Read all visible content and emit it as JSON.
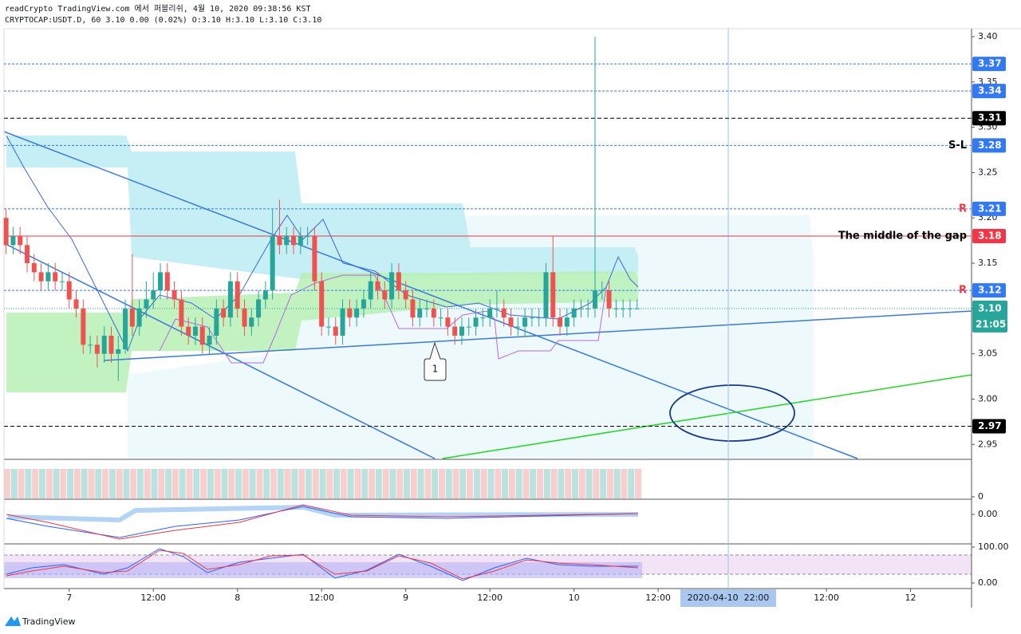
{
  "header": {
    "line1": "readCrypto TradingView.com 에서 퍼블리쉬, 4월 10, 2020 09:38:56 KST",
    "line2": "CRYPTOCAP:USDT.D, 60 3.10 0.00 (0.02%) O:3.10 H:3.10 L:3.10 C:3.10"
  },
  "chart_data": {
    "type": "candlestick",
    "x": [
      -9,
      -8,
      -7,
      -6,
      -5,
      -4,
      -3,
      -2,
      -1,
      0,
      1,
      2,
      3,
      4,
      5,
      6,
      7,
      8,
      9,
      10,
      11,
      12,
      13,
      14,
      15,
      16,
      17,
      18,
      19,
      20,
      21,
      22,
      23,
      24,
      25,
      26,
      27,
      28,
      29,
      30,
      31,
      32,
      33,
      34,
      35,
      36,
      37,
      38,
      39,
      40,
      41,
      42,
      43,
      44,
      45,
      46,
      47,
      48,
      49,
      50,
      51,
      52,
      53,
      54,
      55,
      56,
      57,
      58,
      59,
      60,
      61,
      62,
      63,
      64,
      65,
      66,
      67,
      68,
      69,
      70,
      71,
      72,
      73,
      74,
      75,
      76,
      77,
      78,
      79,
      80,
      81
    ],
    "open": [
      3.2,
      3.17,
      3.18,
      3.17,
      3.15,
      3.14,
      3.13,
      3.14,
      3.13,
      3.13,
      3.11,
      3.1,
      3.06,
      3.06,
      3.05,
      3.07,
      3.05,
      3.055,
      3.1,
      3.08,
      3.1,
      3.11,
      3.12,
      3.14,
      3.12,
      3.11,
      3.08,
      3.07,
      3.08,
      3.06,
      3.07,
      3.1,
      3.09,
      3.13,
      3.1,
      3.08,
      3.09,
      3.11,
      3.12,
      3.18,
      3.17,
      3.18,
      3.17,
      3.18,
      3.18,
      3.13,
      3.08,
      3.08,
      3.07,
      3.1,
      3.09,
      3.1,
      3.11,
      3.13,
      3.12,
      3.11,
      3.14,
      3.12,
      3.11,
      3.09,
      3.1,
      3.1,
      3.09,
      3.09,
      3.08,
      3.07,
      3.08,
      3.08,
      3.09,
      3.09,
      3.1,
      3.1,
      3.09,
      3.08,
      3.08,
      3.09,
      3.09,
      3.09,
      3.14,
      3.09,
      3.08,
      3.09,
      3.1,
      3.1,
      3.1,
      3.12,
      3.12,
      3.1,
      3.1,
      3.1,
      3.1
    ],
    "high": [
      3.21,
      3.19,
      3.19,
      3.18,
      3.16,
      3.15,
      3.15,
      3.15,
      3.14,
      3.14,
      3.12,
      3.11,
      3.07,
      3.07,
      3.08,
      3.08,
      3.07,
      3.11,
      3.16,
      3.11,
      3.13,
      3.14,
      3.15,
      3.15,
      3.13,
      3.12,
      3.09,
      3.09,
      3.09,
      3.08,
      3.11,
      3.11,
      3.14,
      3.14,
      3.11,
      3.1,
      3.12,
      3.13,
      3.21,
      3.22,
      3.19,
      3.19,
      3.19,
      3.19,
      3.19,
      3.14,
      3.09,
      3.09,
      3.11,
      3.11,
      3.11,
      3.12,
      3.14,
      3.14,
      3.13,
      3.15,
      3.15,
      3.13,
      3.12,
      3.11,
      3.11,
      3.11,
      3.1,
      3.1,
      3.09,
      3.09,
      3.09,
      3.1,
      3.1,
      3.11,
      3.12,
      3.11,
      3.1,
      3.09,
      3.1,
      3.1,
      3.1,
      3.15,
      3.18,
      3.1,
      3.1,
      3.11,
      3.11,
      3.11,
      3.4,
      3.13,
      3.13,
      3.11,
      3.11,
      3.11,
      3.11
    ],
    "low": [
      3.16,
      3.16,
      3.16,
      3.14,
      3.13,
      3.12,
      3.12,
      3.12,
      3.12,
      3.1,
      3.09,
      3.05,
      3.05,
      3.035,
      3.04,
      3.04,
      3.02,
      3.05,
      3.07,
      3.07,
      3.09,
      3.1,
      3.11,
      3.11,
      3.1,
      3.07,
      3.06,
      3.06,
      3.05,
      3.05,
      3.06,
      3.08,
      3.08,
      3.09,
      3.07,
      3.07,
      3.08,
      3.1,
      3.11,
      3.16,
      3.16,
      3.16,
      3.16,
      3.17,
      3.12,
      3.07,
      3.07,
      3.06,
      3.06,
      3.08,
      3.08,
      3.09,
      3.1,
      3.11,
      3.1,
      3.1,
      3.11,
      3.1,
      3.08,
      3.08,
      3.09,
      3.08,
      3.08,
      3.07,
      3.06,
      3.06,
      3.07,
      3.07,
      3.08,
      3.08,
      3.09,
      3.08,
      3.07,
      3.07,
      3.07,
      3.08,
      3.08,
      3.08,
      3.08,
      3.07,
      3.07,
      3.08,
      3.09,
      3.09,
      3.09,
      3.11,
      3.09,
      3.09,
      3.09,
      3.09,
      3.1
    ],
    "close": [
      3.17,
      3.18,
      3.17,
      3.15,
      3.14,
      3.13,
      3.14,
      3.13,
      3.13,
      3.11,
      3.1,
      3.06,
      3.06,
      3.05,
      3.07,
      3.05,
      3.055,
      3.1,
      3.08,
      3.1,
      3.11,
      3.12,
      3.14,
      3.12,
      3.11,
      3.08,
      3.07,
      3.08,
      3.06,
      3.07,
      3.1,
      3.09,
      3.13,
      3.1,
      3.08,
      3.09,
      3.11,
      3.12,
      3.18,
      3.17,
      3.18,
      3.17,
      3.18,
      3.18,
      3.13,
      3.08,
      3.08,
      3.07,
      3.1,
      3.09,
      3.1,
      3.11,
      3.13,
      3.12,
      3.11,
      3.14,
      3.12,
      3.11,
      3.09,
      3.1,
      3.1,
      3.09,
      3.09,
      3.08,
      3.07,
      3.08,
      3.08,
      3.09,
      3.09,
      3.1,
      3.1,
      3.09,
      3.08,
      3.08,
      3.09,
      3.09,
      3.09,
      3.14,
      3.09,
      3.08,
      3.09,
      3.1,
      3.1,
      3.1,
      3.12,
      3.12,
      3.1,
      3.1,
      3.1,
      3.1,
      3.1
    ],
    "up_color": "#26a69a",
    "down_color": "#ef5350",
    "xlim": [
      -9.3,
      128.7
    ],
    "xticks": [
      {
        "value": 0,
        "label": "7"
      },
      {
        "value": 12,
        "label": "12:00"
      },
      {
        "value": 24,
        "label": "8"
      },
      {
        "value": 36,
        "label": "12:00"
      },
      {
        "value": 48,
        "label": "9"
      },
      {
        "value": 60,
        "label": "12:00"
      },
      {
        "value": 72,
        "label": "10"
      },
      {
        "value": 84,
        "label": "12:00"
      },
      {
        "value": 108,
        "label": "12:00"
      },
      {
        "value": 120,
        "label": "12"
      }
    ],
    "ylim": [
      2.9335,
      3.4088
    ],
    "yticks": [
      {
        "value": 3.4,
        "label": "3.40"
      },
      3.35,
      {
        "value": 3.3,
        "label": "3.30"
      },
      3.25,
      {
        "value": 3.2,
        "label": "3.20"
      },
      3.15,
      {
        "value": 3.1,
        "label": "3.10"
      },
      3.05,
      {
        "value": 3.0,
        "label": "3.00"
      },
      2.95
    ],
    "levels": [
      {
        "value": 3.37,
        "color": "#3179f5",
        "dash": "dotted"
      },
      {
        "value": 3.34,
        "color": "#3179f5",
        "dash": "dotted"
      },
      {
        "value": 3.31,
        "color": "#000000",
        "dash": "dashed"
      },
      {
        "value": 3.28,
        "color": "#3179f5",
        "dash": "dotted",
        "note": "S-L",
        "note_color": "#000000"
      },
      {
        "value": 3.21,
        "color": "#3179f5",
        "dash": "dotted",
        "note": "R",
        "note_color": "#f23645"
      },
      {
        "value": 3.18,
        "color": "#f23645",
        "dash": "solid",
        "note": "The middle of the gap",
        "note_color": "#000000"
      },
      {
        "value": 3.12,
        "color": "#3179f5",
        "dash": "dotted",
        "note": "R",
        "note_color": "#f23645"
      },
      {
        "value": 2.97,
        "color": "#000000",
        "dash": "dashed"
      }
    ],
    "last_price": {
      "value": 3.1,
      "label": "3.10",
      "countdown": "21:05",
      "color": "#26a69a"
    },
    "crosshair": {
      "x": 94,
      "label": "2020-04-10  22:00"
    },
    "annotation": "1",
    "volume_pane": {
      "ylim": [
        0,
        100
      ],
      "yticks": [
        0
      ]
    },
    "macd_pane": {
      "ylim": [
        -0.1,
        0.05
      ],
      "yticks": [
        {
          "value": 0,
          "label": "0.00"
        }
      ]
    },
    "stoch_pane": {
      "ylim": [
        -15.6,
        106.7
      ],
      "yticks": [
        {
          "value": 100,
          "label": "100.00"
        },
        {
          "value": 0,
          "label": "0.00"
        }
      ]
    }
  },
  "footer": {
    "logo": "TradingView"
  }
}
